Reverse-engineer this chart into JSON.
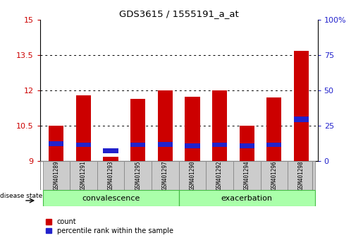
{
  "title": "GDS3615 / 1555191_a_at",
  "samples": [
    "GSM401289",
    "GSM401291",
    "GSM401293",
    "GSM401295",
    "GSM401297",
    "GSM401290",
    "GSM401292",
    "GSM401294",
    "GSM401296",
    "GSM401298"
  ],
  "red_tops": [
    10.5,
    11.8,
    9.2,
    11.65,
    12.0,
    11.75,
    12.0,
    10.5,
    11.7,
    13.7
  ],
  "blue_tops": [
    9.85,
    9.8,
    9.55,
    9.8,
    9.82,
    9.75,
    9.8,
    9.75,
    9.8,
    10.9
  ],
  "blue_bottoms": [
    9.65,
    9.6,
    9.35,
    9.6,
    9.62,
    9.55,
    9.6,
    9.55,
    9.6,
    10.65
  ],
  "groups": [
    {
      "label": "convalescence",
      "start": 0,
      "end": 5
    },
    {
      "label": "exacerbation",
      "start": 5,
      "end": 10
    }
  ],
  "ylim": [
    9,
    15
  ],
  "y_ticks_left": [
    9,
    10.5,
    12,
    13.5,
    15
  ],
  "y_ticks_right": [
    0,
    25,
    50,
    75,
    100
  ],
  "bar_color_red": "#cc0000",
  "bar_color_blue": "#2222cc",
  "bar_width": 0.55,
  "group_bg_color": "#aaffaa",
  "group_border_color": "#44bb44",
  "sample_bg": "#cccccc",
  "legend_count": "count",
  "legend_pct": "percentile rank within the sample",
  "disease_state_label": "disease state",
  "ybase": 9.0
}
